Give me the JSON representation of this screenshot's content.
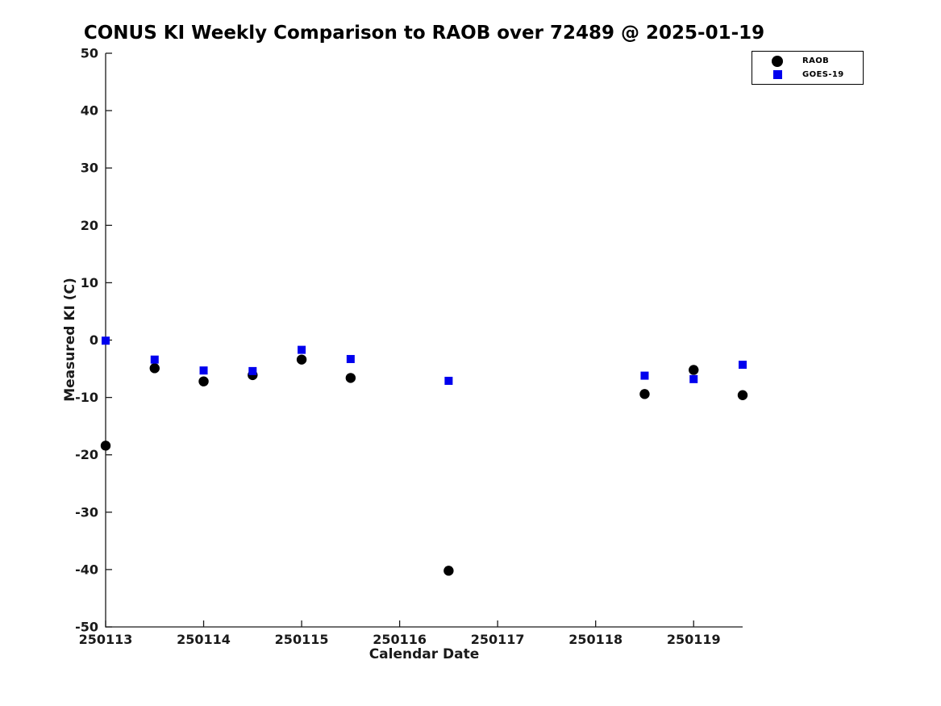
{
  "chart_data": {
    "type": "scatter",
    "title": "CONUS KI Weekly Comparison to RAOB over 72489 @ 2025-01-19",
    "xlabel": "Calendar Date",
    "ylabel": "Measured KI (C)",
    "xlim": [
      250113,
      250119.5
    ],
    "ylim": [
      -50,
      50
    ],
    "xticks": [
      250113,
      250114,
      250115,
      250116,
      250117,
      250118,
      250119
    ],
    "xtick_labels": [
      "250113",
      "250114",
      "250115",
      "250116",
      "250117",
      "250118",
      "250119"
    ],
    "yticks": [
      50,
      40,
      30,
      20,
      10,
      0,
      -10,
      -20,
      -30,
      -40,
      -50
    ],
    "ytick_labels": [
      "50",
      "40",
      "30",
      "20",
      "10",
      "0",
      "-10",
      "-20",
      "-30",
      "-40",
      "-50"
    ],
    "grid": false,
    "legend_position": "top-right",
    "axis_color": "#1a1a1a",
    "series": [
      {
        "name": "RAOB",
        "marker": "circle",
        "color": "#000000",
        "x": [
          250113,
          250113.5,
          250114,
          250114.5,
          250115,
          250115.5,
          250116.5,
          250118.5,
          250119,
          250119.5
        ],
        "y": [
          -18.4,
          -4.9,
          -7.2,
          -6.1,
          -3.4,
          -6.6,
          -40.2,
          -9.4,
          -5.2,
          -9.6
        ]
      },
      {
        "name": "GOES-19",
        "marker": "square",
        "color": "#0000EE",
        "x": [
          250113,
          250113.5,
          250114,
          250114.5,
          250115,
          250115.5,
          250116.5,
          250118.5,
          250119,
          250119.5
        ],
        "y": [
          -0.1,
          -3.4,
          -5.3,
          -5.4,
          -1.7,
          -3.3,
          -7.1,
          -6.2,
          -6.8,
          -4.3
        ]
      }
    ]
  },
  "legend": {
    "items": [
      {
        "label": "RAOB",
        "marker": "circle",
        "color": "#000000"
      },
      {
        "label": "GOES-19",
        "marker": "square",
        "color": "#0000EE"
      }
    ]
  }
}
